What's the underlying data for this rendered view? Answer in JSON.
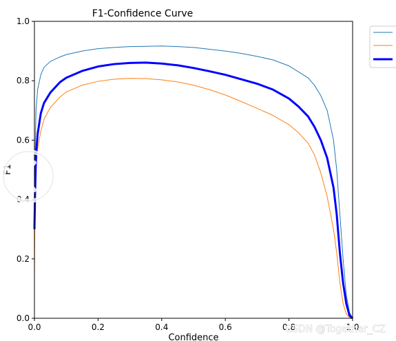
{
  "chart_data": {
    "type": "line",
    "title": "F1-Confidence Curve",
    "xlabel": "Confidence",
    "ylabel": "F1",
    "xlim": [
      0.0,
      1.0
    ],
    "ylim": [
      0.0,
      1.0
    ],
    "xticks": [
      "0.0",
      "0.2",
      "0.4",
      "0.6",
      "0.8",
      "1.0"
    ],
    "yticks": [
      "0.0",
      "0.2",
      "0.4",
      "0.6",
      "0.8",
      "1.0"
    ],
    "grid": false,
    "legend_placement": "outside-top-right",
    "series": [
      {
        "color": "#1f77b4",
        "width": 1,
        "x": [
          0.0,
          0.002,
          0.005,
          0.01,
          0.02,
          0.03,
          0.05,
          0.08,
          0.1,
          0.15,
          0.2,
          0.25,
          0.3,
          0.35,
          0.4,
          0.45,
          0.5,
          0.55,
          0.6,
          0.65,
          0.7,
          0.75,
          0.8,
          0.83,
          0.86,
          0.88,
          0.9,
          0.92,
          0.94,
          0.95,
          0.96,
          0.97,
          0.98,
          0.99,
          1.0
        ],
        "y": [
          0.25,
          0.55,
          0.7,
          0.77,
          0.82,
          0.845,
          0.865,
          0.88,
          0.888,
          0.9,
          0.908,
          0.912,
          0.915,
          0.916,
          0.917,
          0.915,
          0.912,
          0.906,
          0.9,
          0.892,
          0.882,
          0.87,
          0.85,
          0.83,
          0.81,
          0.785,
          0.75,
          0.7,
          0.6,
          0.5,
          0.35,
          0.2,
          0.08,
          0.02,
          0.0
        ]
      },
      {
        "color": "#ff7f0e",
        "width": 1,
        "x": [
          0.0,
          0.002,
          0.005,
          0.01,
          0.02,
          0.03,
          0.05,
          0.08,
          0.1,
          0.15,
          0.2,
          0.25,
          0.3,
          0.35,
          0.4,
          0.45,
          0.5,
          0.55,
          0.6,
          0.65,
          0.7,
          0.75,
          0.8,
          0.83,
          0.86,
          0.88,
          0.9,
          0.92,
          0.94,
          0.95,
          0.96,
          0.97,
          0.98,
          0.99,
          1.0
        ],
        "y": [
          0.15,
          0.4,
          0.5,
          0.57,
          0.63,
          0.67,
          0.71,
          0.745,
          0.762,
          0.785,
          0.798,
          0.805,
          0.808,
          0.807,
          0.803,
          0.796,
          0.785,
          0.77,
          0.752,
          0.73,
          0.707,
          0.683,
          0.652,
          0.625,
          0.59,
          0.55,
          0.49,
          0.41,
          0.3,
          0.22,
          0.12,
          0.05,
          0.015,
          0.003,
          0.0
        ]
      },
      {
        "color": "#0000ff",
        "width": 3,
        "x": [
          0.0,
          0.002,
          0.005,
          0.01,
          0.02,
          0.03,
          0.05,
          0.08,
          0.1,
          0.15,
          0.2,
          0.25,
          0.3,
          0.35,
          0.4,
          0.45,
          0.5,
          0.55,
          0.6,
          0.65,
          0.7,
          0.75,
          0.8,
          0.83,
          0.86,
          0.88,
          0.9,
          0.92,
          0.94,
          0.95,
          0.96,
          0.97,
          0.98,
          0.99,
          1.0
        ],
        "y": [
          0.3,
          0.42,
          0.55,
          0.62,
          0.69,
          0.725,
          0.76,
          0.795,
          0.81,
          0.833,
          0.848,
          0.856,
          0.86,
          0.861,
          0.858,
          0.852,
          0.843,
          0.832,
          0.82,
          0.805,
          0.79,
          0.77,
          0.74,
          0.713,
          0.68,
          0.645,
          0.6,
          0.54,
          0.44,
          0.35,
          0.22,
          0.12,
          0.05,
          0.01,
          0.0
        ]
      }
    ]
  },
  "watermark": {
    "text": "CSDN @Together_CZ"
  }
}
